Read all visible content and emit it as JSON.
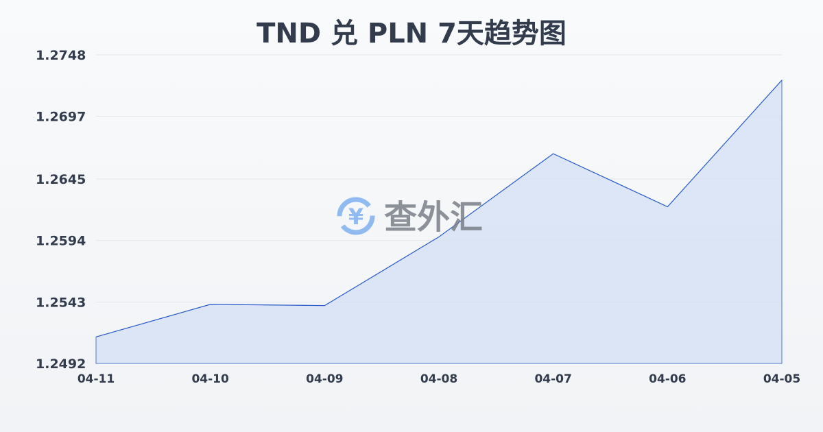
{
  "chart_data": {
    "type": "area",
    "title": "TND 兑 PLN 7天趋势图",
    "categories": [
      "04-11",
      "04-10",
      "04-09",
      "04-08",
      "04-07",
      "04-06",
      "04-05"
    ],
    "values": [
      1.2514,
      1.2541,
      1.254,
      1.2597,
      1.2666,
      1.2622,
      1.2727
    ],
    "yticks": [
      "1.2748",
      "1.2697",
      "1.2645",
      "1.2594",
      "1.2543",
      "1.2492"
    ],
    "ylim": [
      1.2492,
      1.2748
    ],
    "grid": true,
    "line_color": "#2a5bc9",
    "fill_color": "#d6e1f5"
  },
  "watermark": {
    "text": "查外汇",
    "symbol": "¥",
    "icon_color": "#7fb0ef",
    "text_color": "#7a7f88"
  }
}
